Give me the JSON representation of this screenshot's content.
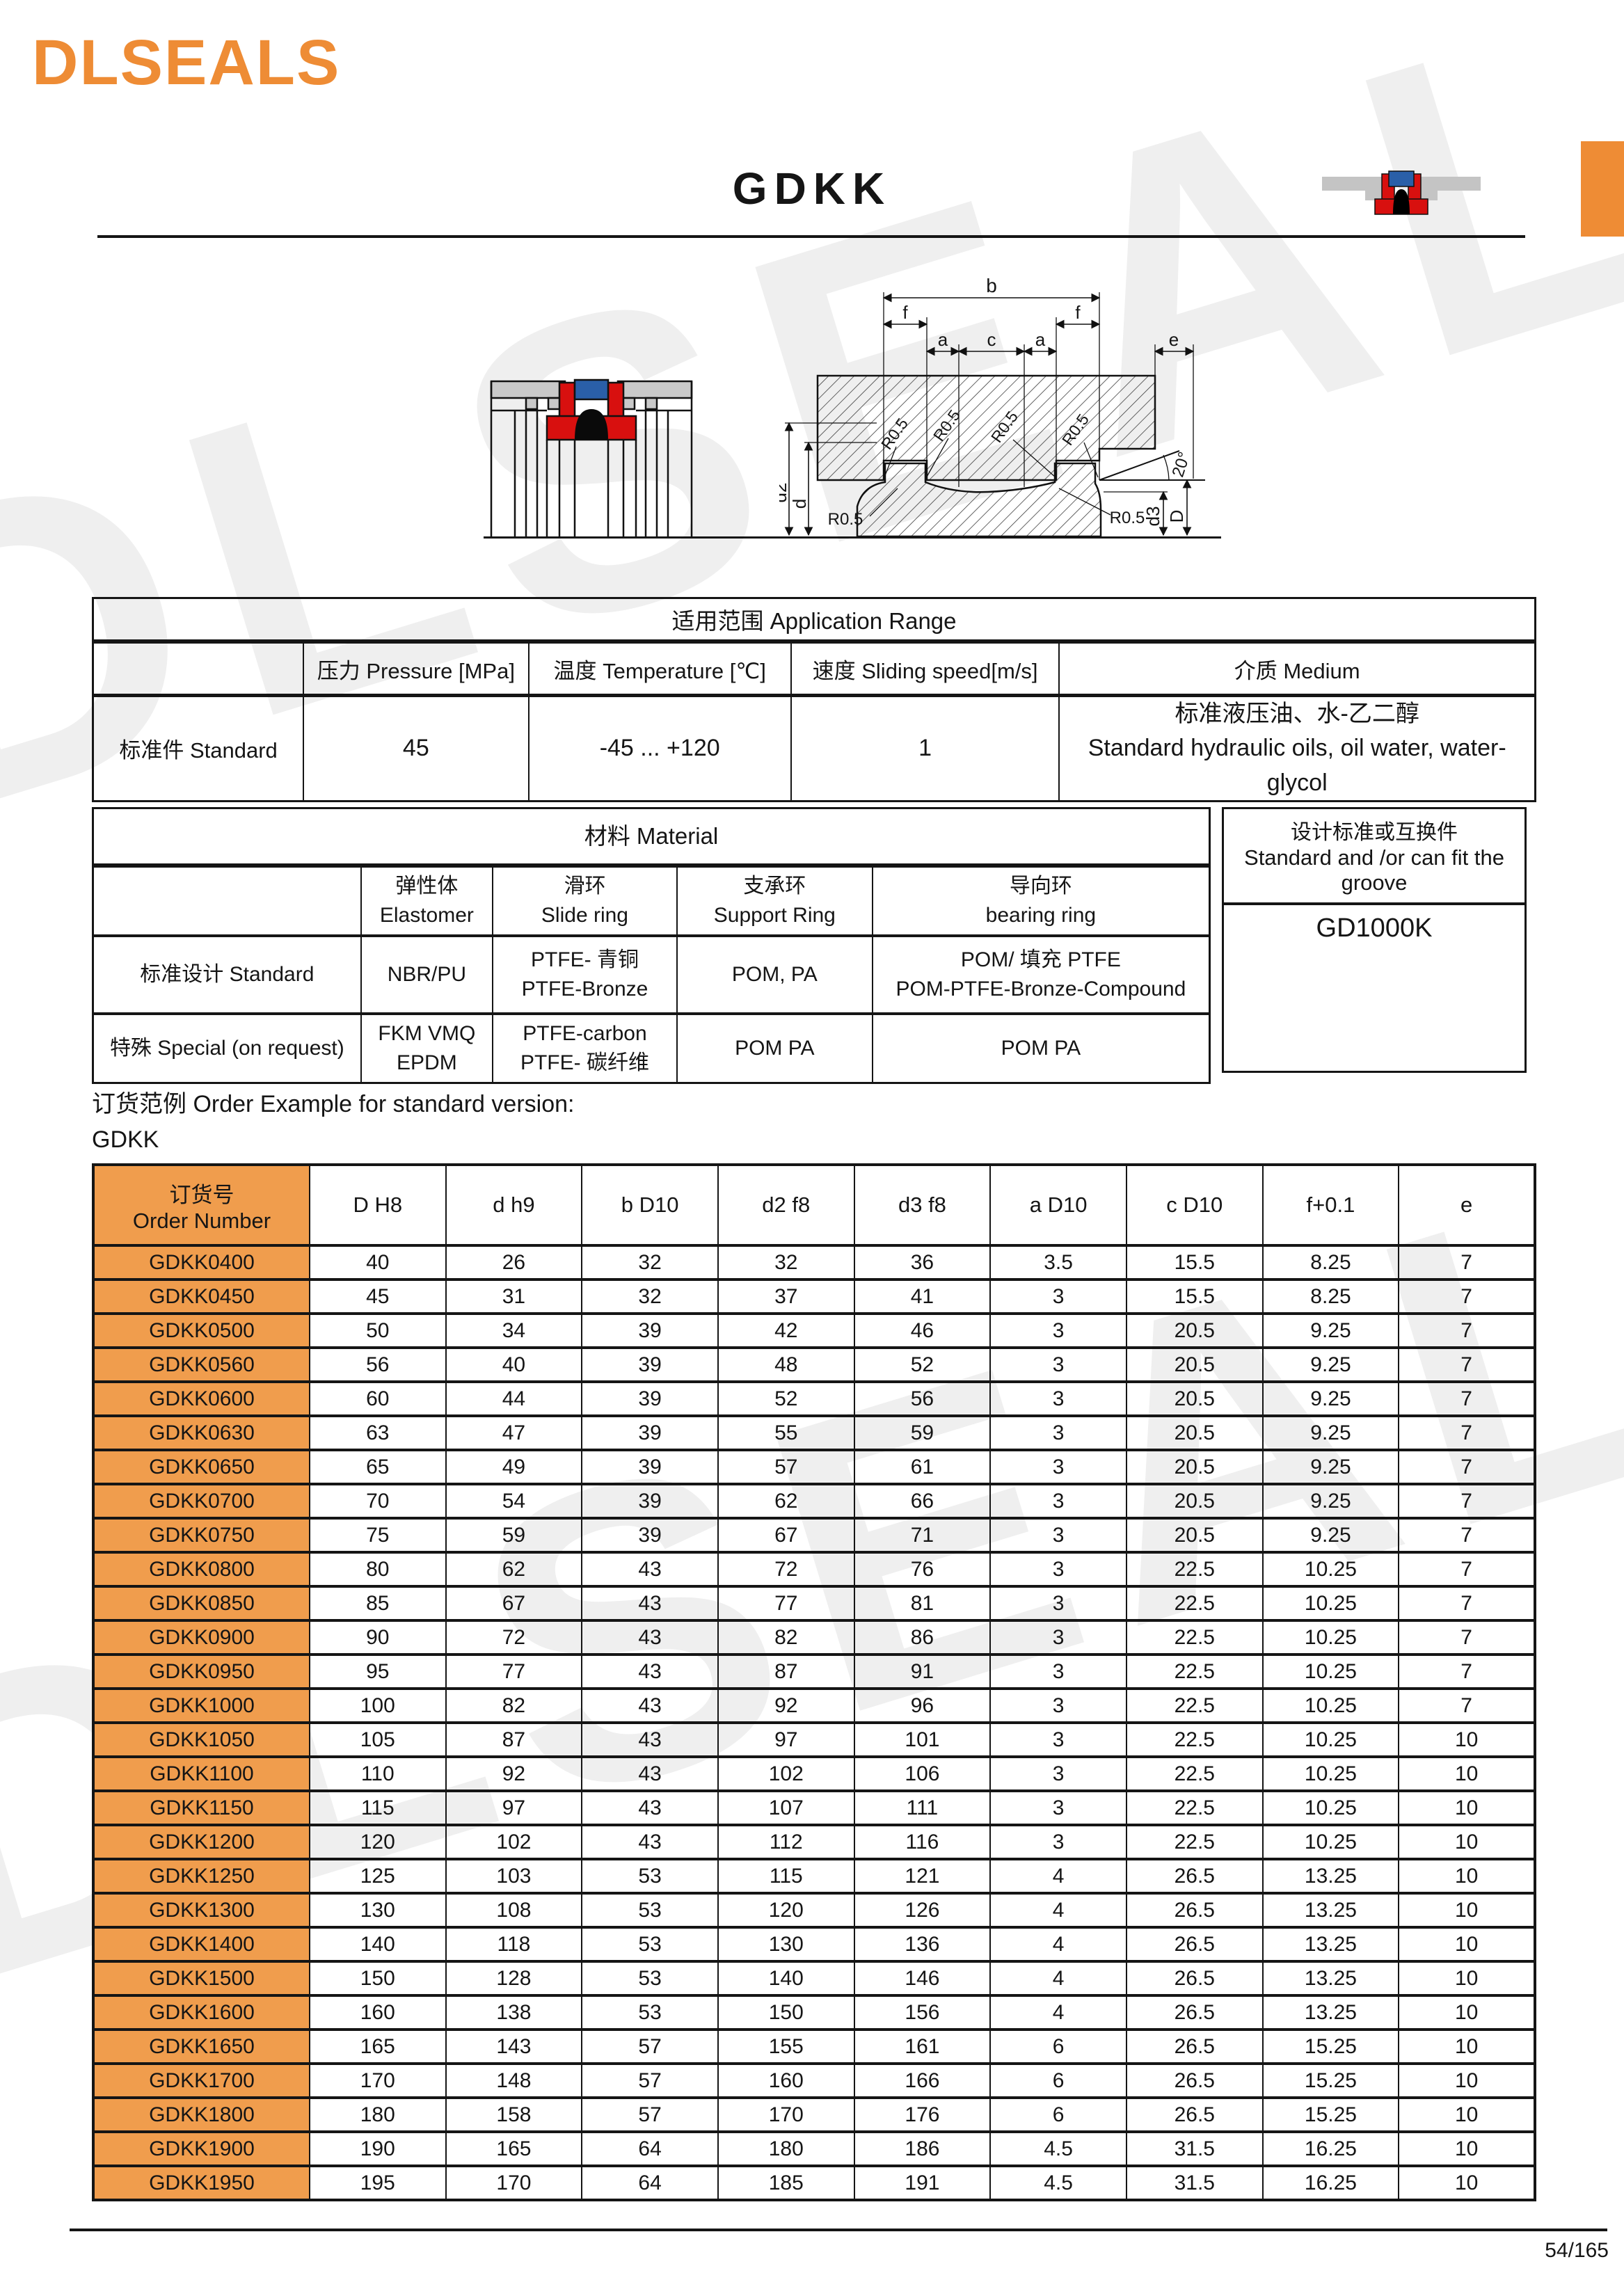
{
  "brand": {
    "logo": "DLSEALS",
    "orange": "#EE8C35"
  },
  "header": {
    "title": "GDKK"
  },
  "watermark": "DLSEALS",
  "application_range": {
    "title": "适用范围 Application Range",
    "headers": [
      "压力 Pressure [MPa]",
      "温度 Temperature [℃]",
      "速度 Sliding speed[m/s]",
      "介质 Medium"
    ],
    "row_label": "标准件 Standard",
    "pressure": "45",
    "temperature": "-45 ... +120",
    "sliding_speed": "1",
    "medium_cn": "标准液压油、水-乙二醇",
    "medium_en": "Standard hydraulic oils, oil water, water-glycol"
  },
  "material": {
    "title": "材料 Material",
    "headers": [
      "弹性体\nElastomer",
      "滑环\nSlide ring",
      "支承环\nSupport Ring",
      "导向环\nbearing ring"
    ],
    "rows": [
      {
        "label": "标准设计 Standard",
        "elastomer": "NBR/PU",
        "slide_ring": "PTFE- 青铜\nPTFE-Bronze",
        "support_ring": "POM, PA",
        "bearing_ring": "POM/ 填充 PTFE\nPOM-PTFE-Bronze-Compound"
      },
      {
        "label": "特殊 Special (on request)",
        "elastomer": "FKM VMQ\nEPDM",
        "slide_ring": "PTFE-carbon\nPTFE- 碳纤维",
        "support_ring": "POM PA",
        "bearing_ring": "POM PA"
      }
    ]
  },
  "groove_box": {
    "title_cn": "设计标准或互换件",
    "title_en": "Standard and /or can fit the groove",
    "value": "GD1000K"
  },
  "order_example": {
    "line1": "订货范例 Order Example for standard version:",
    "line2": "GDKK"
  },
  "size_table": {
    "headers": [
      "订货号\nOrder Number",
      "D H8",
      "d h9",
      "b D10",
      "d2 f8",
      "d3 f8",
      "a D10",
      "c D10",
      "f+0.1",
      "e"
    ],
    "rows": [
      [
        "GDKK0400",
        "40",
        "26",
        "32",
        "32",
        "36",
        "3.5",
        "15.5",
        "8.25",
        "7"
      ],
      [
        "GDKK0450",
        "45",
        "31",
        "32",
        "37",
        "41",
        "3",
        "15.5",
        "8.25",
        "7"
      ],
      [
        "GDKK0500",
        "50",
        "34",
        "39",
        "42",
        "46",
        "3",
        "20.5",
        "9.25",
        "7"
      ],
      [
        "GDKK0560",
        "56",
        "40",
        "39",
        "48",
        "52",
        "3",
        "20.5",
        "9.25",
        "7"
      ],
      [
        "GDKK0600",
        "60",
        "44",
        "39",
        "52",
        "56",
        "3",
        "20.5",
        "9.25",
        "7"
      ],
      [
        "GDKK0630",
        "63",
        "47",
        "39",
        "55",
        "59",
        "3",
        "20.5",
        "9.25",
        "7"
      ],
      [
        "GDKK0650",
        "65",
        "49",
        "39",
        "57",
        "61",
        "3",
        "20.5",
        "9.25",
        "7"
      ],
      [
        "GDKK0700",
        "70",
        "54",
        "39",
        "62",
        "66",
        "3",
        "20.5",
        "9.25",
        "7"
      ],
      [
        "GDKK0750",
        "75",
        "59",
        "39",
        "67",
        "71",
        "3",
        "20.5",
        "9.25",
        "7"
      ],
      [
        "GDKK0800",
        "80",
        "62",
        "43",
        "72",
        "76",
        "3",
        "22.5",
        "10.25",
        "7"
      ],
      [
        "GDKK0850",
        "85",
        "67",
        "43",
        "77",
        "81",
        "3",
        "22.5",
        "10.25",
        "7"
      ],
      [
        "GDKK0900",
        "90",
        "72",
        "43",
        "82",
        "86",
        "3",
        "22.5",
        "10.25",
        "7"
      ],
      [
        "GDKK0950",
        "95",
        "77",
        "43",
        "87",
        "91",
        "3",
        "22.5",
        "10.25",
        "7"
      ],
      [
        "GDKK1000",
        "100",
        "82",
        "43",
        "92",
        "96",
        "3",
        "22.5",
        "10.25",
        "7"
      ],
      [
        "GDKK1050",
        "105",
        "87",
        "43",
        "97",
        "101",
        "3",
        "22.5",
        "10.25",
        "10"
      ],
      [
        "GDKK1100",
        "110",
        "92",
        "43",
        "102",
        "106",
        "3",
        "22.5",
        "10.25",
        "10"
      ],
      [
        "GDKK1150",
        "115",
        "97",
        "43",
        "107",
        "111",
        "3",
        "22.5",
        "10.25",
        "10"
      ],
      [
        "GDKK1200",
        "120",
        "102",
        "43",
        "112",
        "116",
        "3",
        "22.5",
        "10.25",
        "10"
      ],
      [
        "GDKK1250",
        "125",
        "103",
        "53",
        "115",
        "121",
        "4",
        "26.5",
        "13.25",
        "10"
      ],
      [
        "GDKK1300",
        "130",
        "108",
        "53",
        "120",
        "126",
        "4",
        "26.5",
        "13.25",
        "10"
      ],
      [
        "GDKK1400",
        "140",
        "118",
        "53",
        "130",
        "136",
        "4",
        "26.5",
        "13.25",
        "10"
      ],
      [
        "GDKK1500",
        "150",
        "128",
        "53",
        "140",
        "146",
        "4",
        "26.5",
        "13.25",
        "10"
      ],
      [
        "GDKK1600",
        "160",
        "138",
        "53",
        "150",
        "156",
        "4",
        "26.5",
        "13.25",
        "10"
      ],
      [
        "GDKK1650",
        "165",
        "143",
        "57",
        "155",
        "161",
        "6",
        "26.5",
        "15.25",
        "10"
      ],
      [
        "GDKK1700",
        "170",
        "148",
        "57",
        "160",
        "166",
        "6",
        "26.5",
        "15.25",
        "10"
      ],
      [
        "GDKK1800",
        "180",
        "158",
        "57",
        "170",
        "176",
        "6",
        "26.5",
        "15.25",
        "10"
      ],
      [
        "GDKK1900",
        "190",
        "165",
        "64",
        "180",
        "186",
        "4.5",
        "31.5",
        "16.25",
        "10"
      ],
      [
        "GDKK1950",
        "195",
        "170",
        "64",
        "185",
        "191",
        "4.5",
        "31.5",
        "16.25",
        "10"
      ]
    ]
  },
  "diagram": {
    "b": "b",
    "f": "f",
    "a": "a",
    "c": "c",
    "e": "e",
    "r05": "R0.5",
    "angle": "20°",
    "d2": "d2",
    "d": "d",
    "d3": "d3",
    "D": "D"
  },
  "footer": {
    "page": "54/165"
  }
}
